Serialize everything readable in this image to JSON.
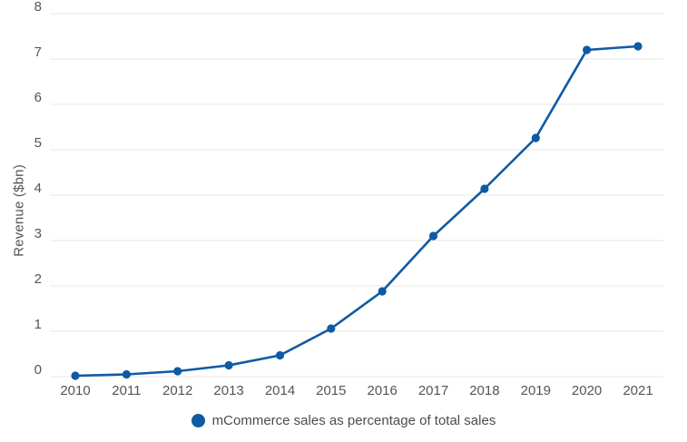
{
  "chart_data": {
    "type": "line",
    "title": "",
    "xlabel": "",
    "ylabel": "Revenue ($bn)",
    "categories": [
      "2010",
      "2011",
      "2012",
      "2013",
      "2014",
      "2015",
      "2016",
      "2017",
      "2018",
      "2019",
      "2020",
      "2021"
    ],
    "series": [
      {
        "name": "mCommerce sales as percentage of total sales",
        "values": [
          0.02,
          0.05,
          0.12,
          0.25,
          0.47,
          1.06,
          1.88,
          3.1,
          4.14,
          5.26,
          7.2,
          7.28
        ]
      }
    ],
    "ylim": [
      0,
      8
    ],
    "y_ticks": [
      0,
      1,
      2,
      3,
      4,
      5,
      6,
      7,
      8
    ],
    "grid": "horizontal",
    "legend_position": "bottom",
    "marker": "circle",
    "colors": {
      "line": "#0f5aa5",
      "grid": "#e7e7e7",
      "axis_text": "#555555",
      "legend_text": "#4c4c4c",
      "background": "#ffffff"
    }
  }
}
